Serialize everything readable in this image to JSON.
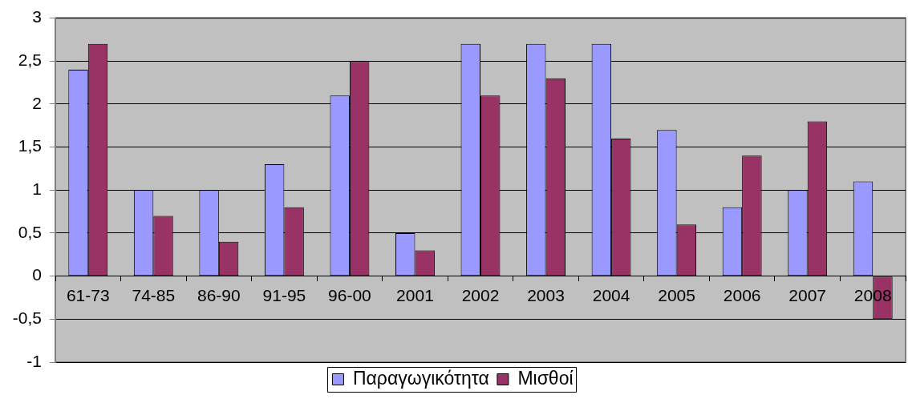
{
  "chart_data": {
    "type": "bar",
    "categories": [
      "61-73",
      "74-85",
      "86-90",
      "91-95",
      "96-00",
      "2001",
      "2002",
      "2003",
      "2004",
      "2005",
      "2006",
      "2007",
      "2008"
    ],
    "series": [
      {
        "name": "Παραγωγικότητα",
        "color": "#9999ff",
        "values": [
          2.4,
          1.0,
          1.0,
          1.3,
          2.1,
          0.5,
          2.7,
          2.7,
          2.7,
          1.7,
          0.8,
          1.0,
          1.1
        ]
      },
      {
        "name": "Μισθοί",
        "color": "#993366",
        "values": [
          2.7,
          0.7,
          0.4,
          0.8,
          2.5,
          0.3,
          2.1,
          2.3,
          1.6,
          0.6,
          1.4,
          1.8,
          -0.5
        ]
      }
    ],
    "ylim": [
      -1,
      3
    ],
    "yticks": [
      -1,
      {
        "value": -0.5,
        "label": "-0,5"
      },
      0,
      {
        "value": 0.5,
        "label": "0,5"
      },
      1,
      {
        "value": 1.5,
        "label": "1,5"
      },
      2,
      {
        "value": 2.5,
        "label": "2,5"
      },
      3
    ],
    "grid": "y",
    "legend": "bottom"
  }
}
